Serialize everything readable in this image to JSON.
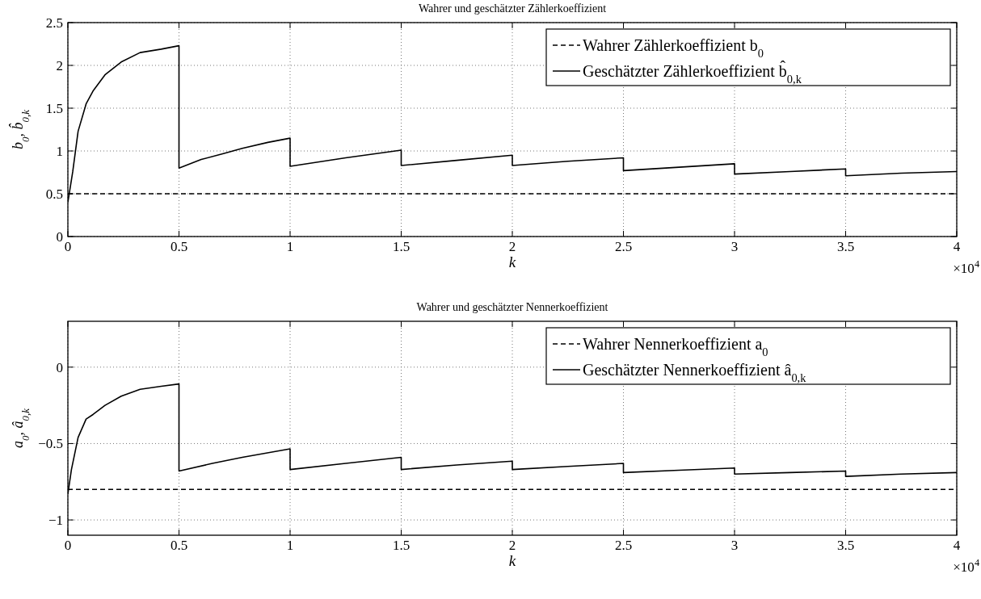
{
  "chart_data": [
    {
      "type": "line",
      "title": "Wahrer und geschätzter Zählerkoeffizient",
      "xlabel": "k",
      "ylabel": "b$_{0}$, b̂$_{0,k}$",
      "xlim": [
        0,
        4
      ],
      "xticks": [
        0,
        0.5,
        1,
        1.5,
        2,
        2.5,
        3,
        3.5,
        4
      ],
      "ylim": [
        0,
        2.5
      ],
      "yticks": [
        0,
        0.5,
        1,
        1.5,
        2,
        2.5
      ],
      "grid": true,
      "legend": "top right",
      "annotations": [
        "×10$^{4}$"
      ],
      "series": [
        {
          "name": "Wahrer Zählerkoeffizient b$_{0}$",
          "color": "#000000",
          "line_style": "dashed",
          "x": [
            0,
            4
          ],
          "values": [
            0.5,
            0.5
          ]
        },
        {
          "name": "Geschätzter Zählerkoeffizient b̂$_{0,k}$",
          "color": "#000000",
          "line_style": "solid",
          "x": [
            0,
            0.022,
            0.046,
            0.082,
            0.113,
            0.167,
            0.24,
            0.325,
            0.42,
            0.5,
            0.5,
            0.6,
            0.7,
            0.785,
            0.9,
            1,
            1,
            1.25,
            1.5,
            1.5,
            1.75,
            2,
            2,
            2.25,
            2.5,
            2.5,
            2.75,
            3,
            3,
            3.25,
            3.5,
            3.5,
            3.75,
            4
          ],
          "values": [
            0.4,
            0.76,
            1.23,
            1.55,
            1.7,
            1.89,
            2.04,
            2.15,
            2.19,
            2.23,
            0.8,
            0.9,
            0.97,
            1.03,
            1.1,
            1.15,
            0.82,
            0.92,
            1.01,
            0.83,
            0.89,
            0.95,
            0.83,
            0.88,
            0.92,
            0.77,
            0.81,
            0.85,
            0.73,
            0.76,
            0.79,
            0.71,
            0.74,
            0.76
          ]
        }
      ]
    },
    {
      "type": "line",
      "title": "Wahrer und geschätzter Nennerkoeffizient",
      "xlabel": "k",
      "ylabel": "a$_{0}$, â$_{0,k}$",
      "xlim": [
        0,
        4
      ],
      "xticks": [
        0,
        0.5,
        1,
        1.5,
        2,
        2.5,
        3,
        3.5,
        4
      ],
      "ylim": [
        -1.1,
        0.3
      ],
      "yticks": [
        {
          "value": -1,
          "label": "−1"
        },
        {
          "value": -0.5,
          "label": "−0.5"
        },
        0
      ],
      "grid": true,
      "legend": "top right",
      "annotations": [
        "×10$^{4}$"
      ],
      "series": [
        {
          "name": "Wahrer Nennerkoeffizient a$_{0}$",
          "color": "#000000",
          "line_style": "dashed",
          "x": [
            0,
            4
          ],
          "values": [
            -0.8,
            -0.8
          ]
        },
        {
          "name": "Geschätzter Nennerkoeffizient â$_{0,k}$",
          "color": "#000000",
          "line_style": "solid",
          "x": [
            0,
            0.016,
            0.046,
            0.082,
            0.113,
            0.167,
            0.24,
            0.325,
            0.42,
            0.5,
            0.5,
            0.65,
            0.785,
            1,
            1,
            1.25,
            1.5,
            1.5,
            1.75,
            2,
            2,
            2.25,
            2.5,
            2.5,
            2.75,
            3,
            3,
            3.25,
            3.5,
            3.5,
            3.75,
            4
          ],
          "values": [
            -0.83,
            -0.67,
            -0.46,
            -0.34,
            -0.31,
            -0.25,
            -0.19,
            -0.145,
            -0.125,
            -0.11,
            -0.68,
            -0.63,
            -0.59,
            -0.535,
            -0.67,
            -0.63,
            -0.59,
            -0.67,
            -0.64,
            -0.615,
            -0.67,
            -0.65,
            -0.63,
            -0.69,
            -0.675,
            -0.66,
            -0.7,
            -0.69,
            -0.68,
            -0.715,
            -0.7,
            -0.69
          ]
        }
      ]
    }
  ]
}
